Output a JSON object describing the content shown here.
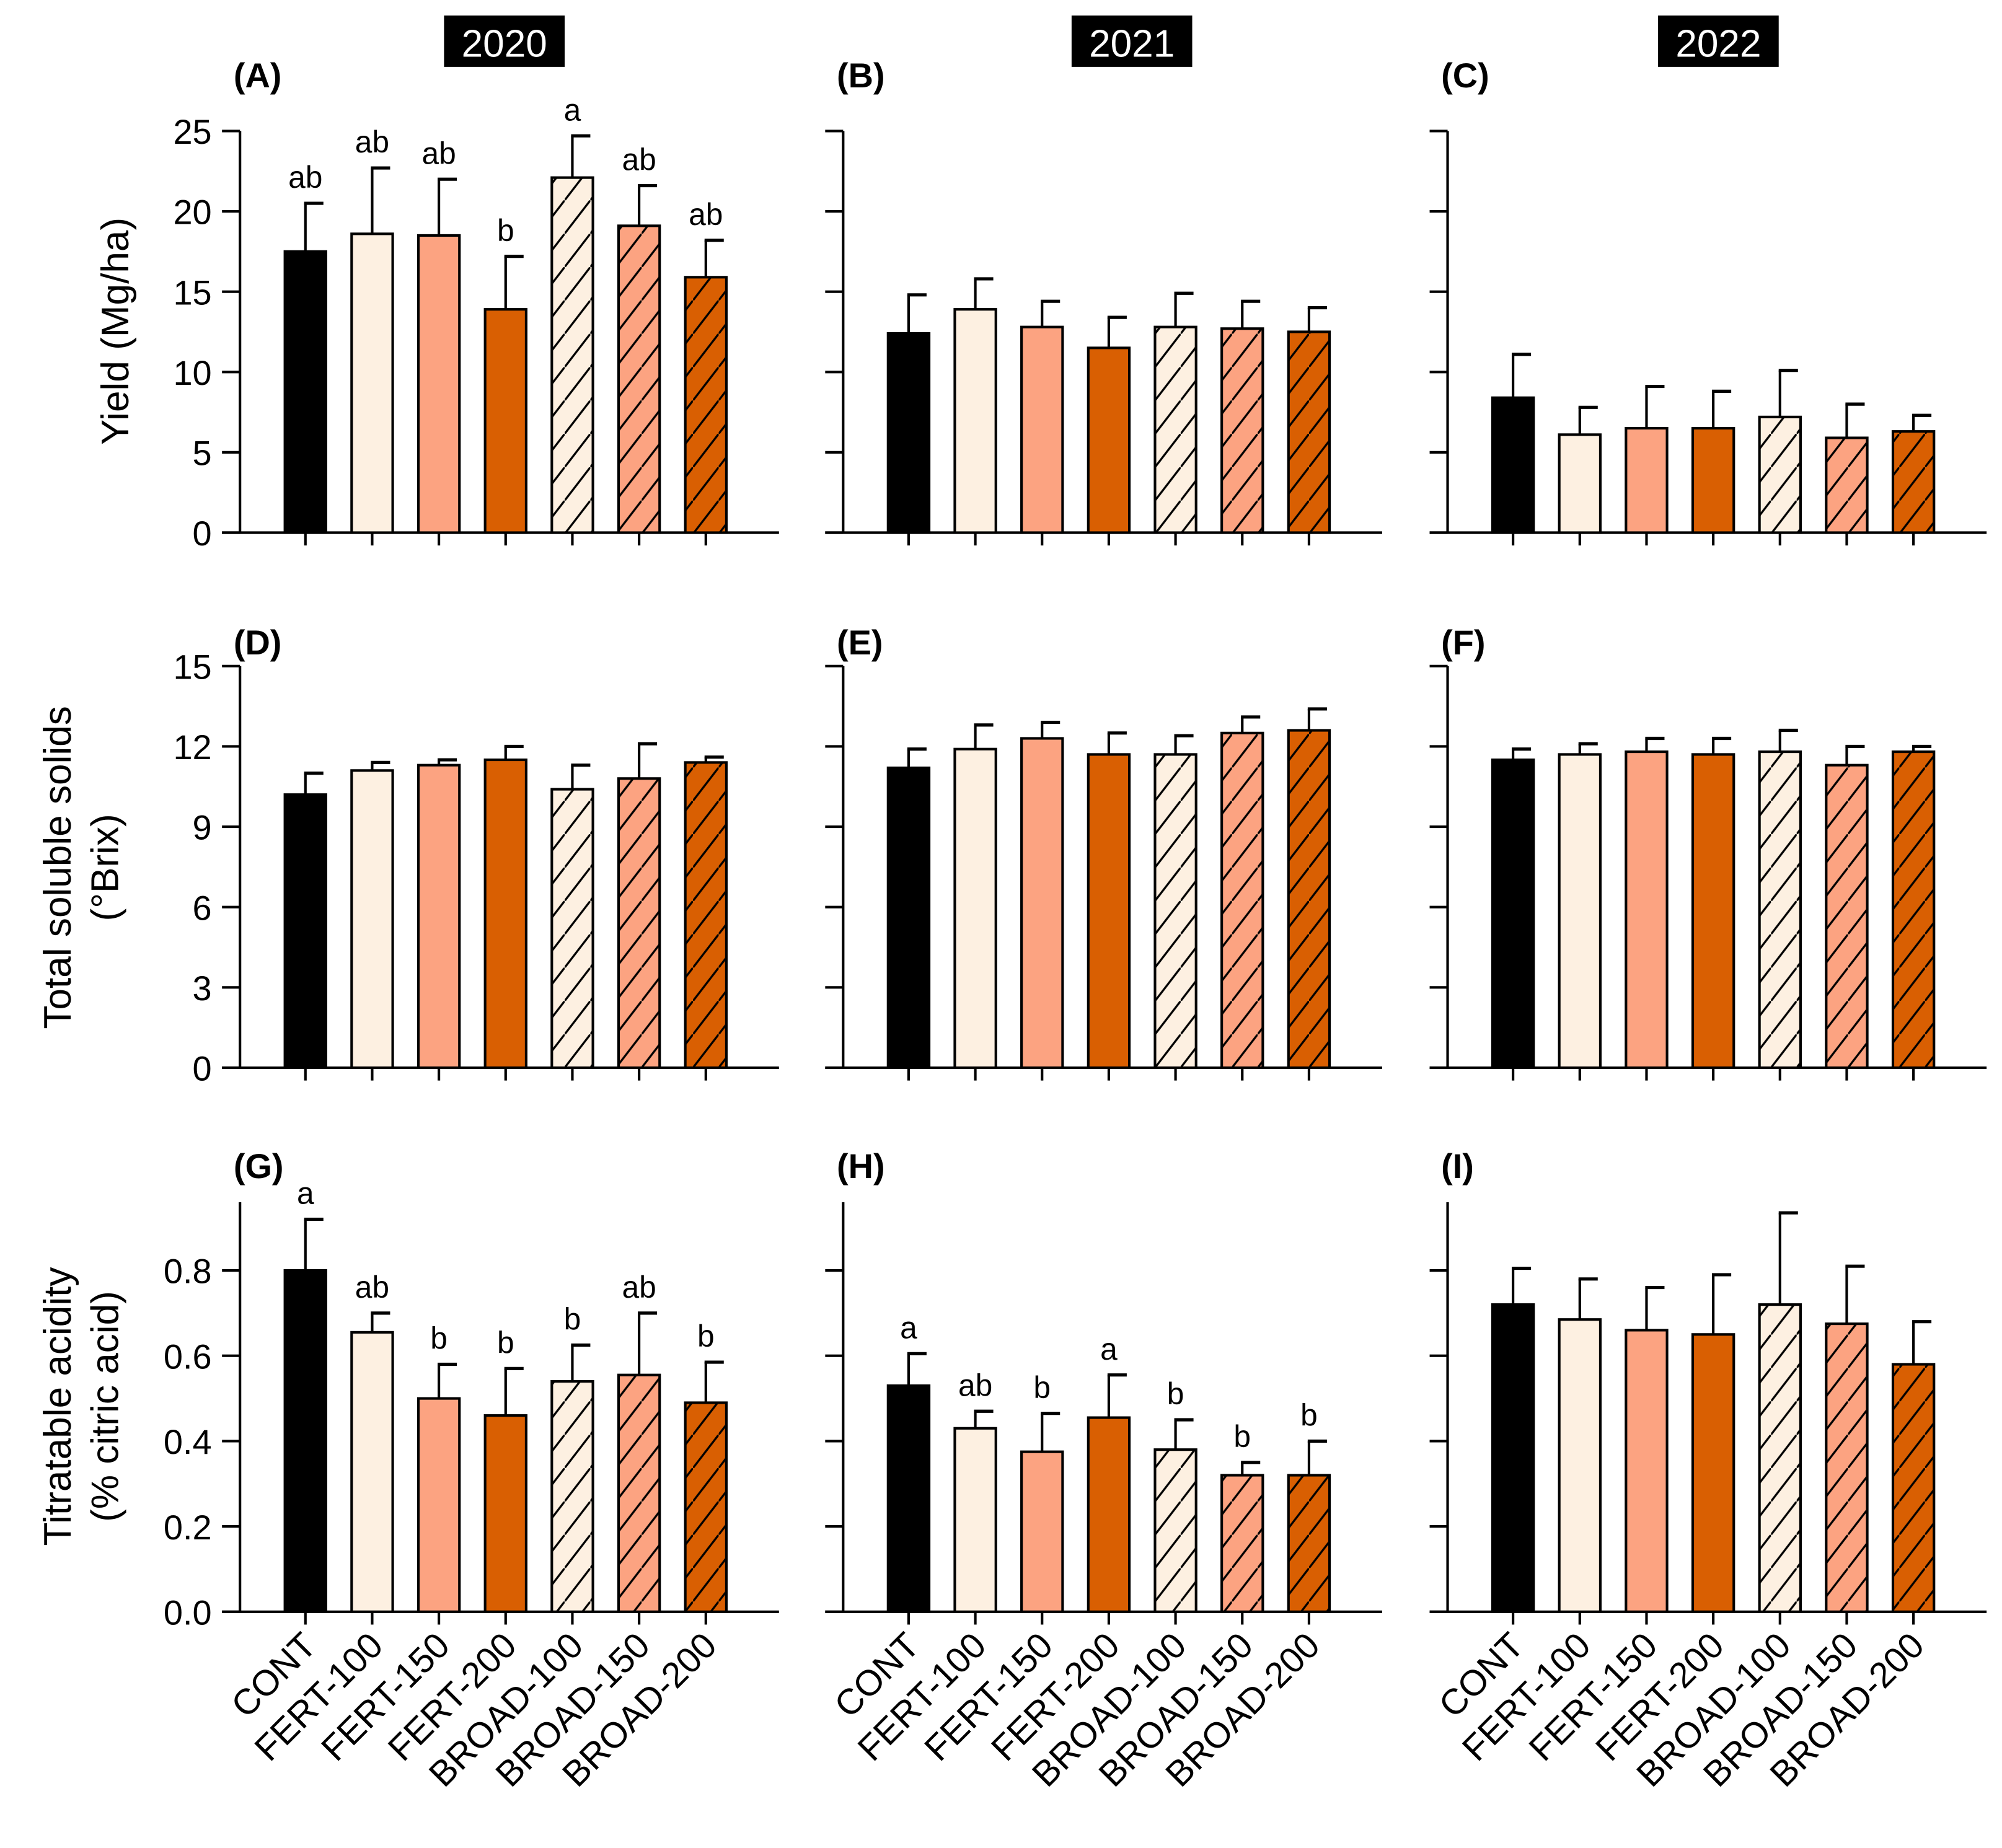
{
  "years": [
    "2020",
    "2021",
    "2022"
  ],
  "row_ylabels": [
    [
      "Yield (Mg/ha)"
    ],
    [
      "Total soluble solids",
      "(°Brix)"
    ],
    [
      "Titratable acidity",
      "(% citric acid)"
    ]
  ],
  "categories": [
    "CONT",
    "FERT-100",
    "FERT-150",
    "FERT-200",
    "BROAD-100",
    "BROAD-150",
    "BROAD-200"
  ],
  "colors": [
    "#000000",
    "#fdf0e1",
    "#fca381",
    "#d95f02",
    "#fdf0e1",
    "#fca381",
    "#d95f02"
  ],
  "hatched": [
    false,
    false,
    false,
    false,
    true,
    true,
    true
  ],
  "chart_data": [
    {
      "type": "bar",
      "label": "(A)",
      "row": 0,
      "col": 0,
      "ylim": [
        0,
        25
      ],
      "yticks": [
        0,
        5,
        10,
        15,
        20,
        25
      ],
      "tick_labels": [
        "0",
        "5",
        "10",
        "15",
        "20",
        "25"
      ],
      "values": [
        17.5,
        18.6,
        18.5,
        13.9,
        22.1,
        19.1,
        15.9
      ],
      "error_top": [
        20.5,
        22.7,
        22.0,
        17.2,
        24.7,
        21.6,
        18.2
      ],
      "letters": [
        "ab",
        "ab",
        "ab",
        "b",
        "a",
        "ab",
        "ab"
      ]
    },
    {
      "type": "bar",
      "label": "(B)",
      "row": 0,
      "col": 1,
      "ylim": [
        0,
        25
      ],
      "yticks": [
        0,
        5,
        10,
        15,
        20,
        25
      ],
      "values": [
        12.4,
        13.9,
        12.8,
        11.5,
        12.8,
        12.7,
        12.5
      ],
      "error_top": [
        14.8,
        15.8,
        14.4,
        13.4,
        14.9,
        14.4,
        14.0
      ]
    },
    {
      "type": "bar",
      "label": "(C)",
      "row": 0,
      "col": 2,
      "ylim": [
        0,
        25
      ],
      "yticks": [
        0,
        5,
        10,
        15,
        20,
        25
      ],
      "values": [
        8.4,
        6.1,
        6.5,
        6.5,
        7.2,
        5.9,
        6.3
      ],
      "error_top": [
        11.1,
        7.8,
        9.1,
        8.8,
        10.1,
        8.0,
        7.3
      ]
    },
    {
      "type": "bar",
      "label": "(D)",
      "row": 1,
      "col": 0,
      "ylim": [
        0,
        15
      ],
      "yticks": [
        0,
        3,
        6,
        9,
        12,
        15
      ],
      "tick_labels": [
        "0",
        "3",
        "6",
        "9",
        "12",
        "15"
      ],
      "values": [
        10.2,
        11.1,
        11.3,
        11.5,
        10.4,
        10.8,
        11.4
      ],
      "error_top": [
        11.0,
        11.4,
        11.5,
        12.0,
        11.3,
        12.1,
        11.6
      ]
    },
    {
      "type": "bar",
      "label": "(E)",
      "row": 1,
      "col": 1,
      "ylim": [
        0,
        15
      ],
      "yticks": [
        0,
        3,
        6,
        9,
        12,
        15
      ],
      "values": [
        11.2,
        11.9,
        12.3,
        11.7,
        11.7,
        12.5,
        12.6
      ],
      "error_top": [
        11.9,
        12.8,
        12.9,
        12.5,
        12.4,
        13.1,
        13.4
      ]
    },
    {
      "type": "bar",
      "label": "(F)",
      "row": 1,
      "col": 2,
      "ylim": [
        0,
        15
      ],
      "yticks": [
        0,
        3,
        6,
        9,
        12,
        15
      ],
      "values": [
        11.5,
        11.7,
        11.8,
        11.7,
        11.8,
        11.3,
        11.8
      ],
      "error_top": [
        11.9,
        12.1,
        12.3,
        12.3,
        12.6,
        12.0,
        12.0
      ]
    },
    {
      "type": "bar",
      "label": "(G)",
      "row": 2,
      "col": 0,
      "ylim": [
        0,
        0.96
      ],
      "yticks": [
        0,
        0.2,
        0.4,
        0.6,
        0.8
      ],
      "tick_labels": [
        "0.0",
        "0.2",
        "0.4",
        "0.6",
        "0.8"
      ],
      "values": [
        0.8,
        0.655,
        0.5,
        0.46,
        0.54,
        0.555,
        0.49
      ],
      "error_top": [
        0.92,
        0.7,
        0.58,
        0.57,
        0.625,
        0.7,
        0.585
      ],
      "letters": [
        "a",
        "ab",
        "b",
        "b",
        "b",
        "ab",
        "b"
      ]
    },
    {
      "type": "bar",
      "label": "(H)",
      "row": 2,
      "col": 1,
      "ylim": [
        0,
        0.96
      ],
      "yticks": [
        0,
        0.2,
        0.4,
        0.6,
        0.8
      ],
      "values": [
        0.53,
        0.43,
        0.375,
        0.455,
        0.38,
        0.32,
        0.32
      ],
      "error_top": [
        0.605,
        0.47,
        0.465,
        0.555,
        0.45,
        0.35,
        0.4
      ],
      "letters": [
        "a",
        "ab",
        "b",
        "a",
        "b",
        "b",
        "b"
      ]
    },
    {
      "type": "bar",
      "label": "(I)",
      "row": 2,
      "col": 2,
      "ylim": [
        0,
        0.96
      ],
      "yticks": [
        0,
        0.2,
        0.4,
        0.6,
        0.8
      ],
      "values": [
        0.72,
        0.685,
        0.66,
        0.65,
        0.72,
        0.675,
        0.58
      ],
      "error_top": [
        0.805,
        0.78,
        0.76,
        0.79,
        0.935,
        0.81,
        0.68
      ]
    }
  ]
}
